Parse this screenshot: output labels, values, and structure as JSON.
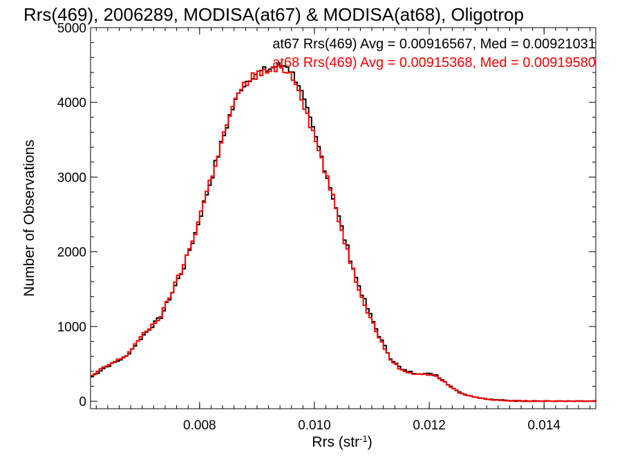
{
  "chart_data": {
    "type": "line",
    "title": "Rrs(469), 2006289, MODISA(at67) & MODISA(at68), Oligotrop",
    "xlabel": "Rrs (str",
    "xlabel_sup": "-1",
    "xlabel_close": ")",
    "ylabel": "Number of Observations",
    "xlim": [
      0.0061,
      0.0149
    ],
    "ylim": [
      -100,
      5000
    ],
    "xticks": [
      {
        "value": 0.008,
        "label": "0.008"
      },
      {
        "value": 0.01,
        "label": "0.010"
      },
      {
        "value": 0.012,
        "label": "0.012"
      },
      {
        "value": 0.014,
        "label": "0.014"
      }
    ],
    "yticks": [
      {
        "value": 0,
        "label": "0"
      },
      {
        "value": 1000,
        "label": "1000"
      },
      {
        "value": 2000,
        "label": "2000"
      },
      {
        "value": 3000,
        "label": "3000"
      },
      {
        "value": 4000,
        "label": "4000"
      },
      {
        "value": 5000,
        "label": "5000"
      }
    ],
    "grid": false,
    "legend_position": "top-right",
    "series": [
      {
        "name": "at67 Rrs(469) Avg = 0.00916567, Med = 0.00921031",
        "color": "#000000",
        "x": [
          0.0061,
          0.0063,
          0.0065,
          0.0067,
          0.0069,
          0.0071,
          0.0073,
          0.0075,
          0.0077,
          0.0079,
          0.0081,
          0.0083,
          0.0085,
          0.0087,
          0.0089,
          0.0091,
          0.0093,
          0.0095,
          0.0097,
          0.0099,
          0.0101,
          0.0103,
          0.0105,
          0.0107,
          0.0109,
          0.0111,
          0.0113,
          0.0115,
          0.0117,
          0.0119,
          0.0121,
          0.0123,
          0.0125,
          0.0127,
          0.0129,
          0.0131,
          0.0133,
          0.0135,
          0.0137,
          0.0139,
          0.0141,
          0.0143,
          0.0145,
          0.0147,
          0.0149
        ],
        "y": [
          330,
          440,
          520,
          600,
          800,
          970,
          1130,
          1460,
          1800,
          2250,
          2780,
          3300,
          3820,
          4200,
          4370,
          4420,
          4480,
          4500,
          4250,
          3750,
          3270,
          2740,
          2180,
          1650,
          1240,
          880,
          580,
          420,
          380,
          370,
          350,
          230,
          120,
          70,
          40,
          20,
          10,
          5,
          3,
          2,
          1,
          0,
          0,
          0,
          0
        ]
      },
      {
        "name": "at68 Rrs(469) Avg = 0.00915368, Med = 0.00919580",
        "color": "#ff0000",
        "x": [
          0.0061,
          0.0063,
          0.0065,
          0.0067,
          0.0069,
          0.0071,
          0.0073,
          0.0075,
          0.0077,
          0.0079,
          0.0081,
          0.0083,
          0.0085,
          0.0087,
          0.0089,
          0.0091,
          0.0093,
          0.0095,
          0.0097,
          0.0099,
          0.0101,
          0.0103,
          0.0105,
          0.0107,
          0.0109,
          0.0111,
          0.0113,
          0.0115,
          0.0117,
          0.0119,
          0.0121,
          0.0123,
          0.0125,
          0.0127,
          0.0129,
          0.0131,
          0.0133,
          0.0135,
          0.0137,
          0.0139,
          0.0141,
          0.0143,
          0.0145,
          0.0147,
          0.0149
        ],
        "y": [
          340,
          450,
          530,
          610,
          810,
          980,
          1140,
          1480,
          1820,
          2270,
          2800,
          3310,
          3830,
          4180,
          4350,
          4400,
          4430,
          4440,
          4200,
          3720,
          3240,
          2710,
          2150,
          1620,
          1210,
          860,
          560,
          410,
          370,
          360,
          340,
          220,
          115,
          65,
          38,
          18,
          9,
          4,
          3,
          2,
          1,
          0,
          0,
          0,
          0
        ]
      }
    ]
  }
}
